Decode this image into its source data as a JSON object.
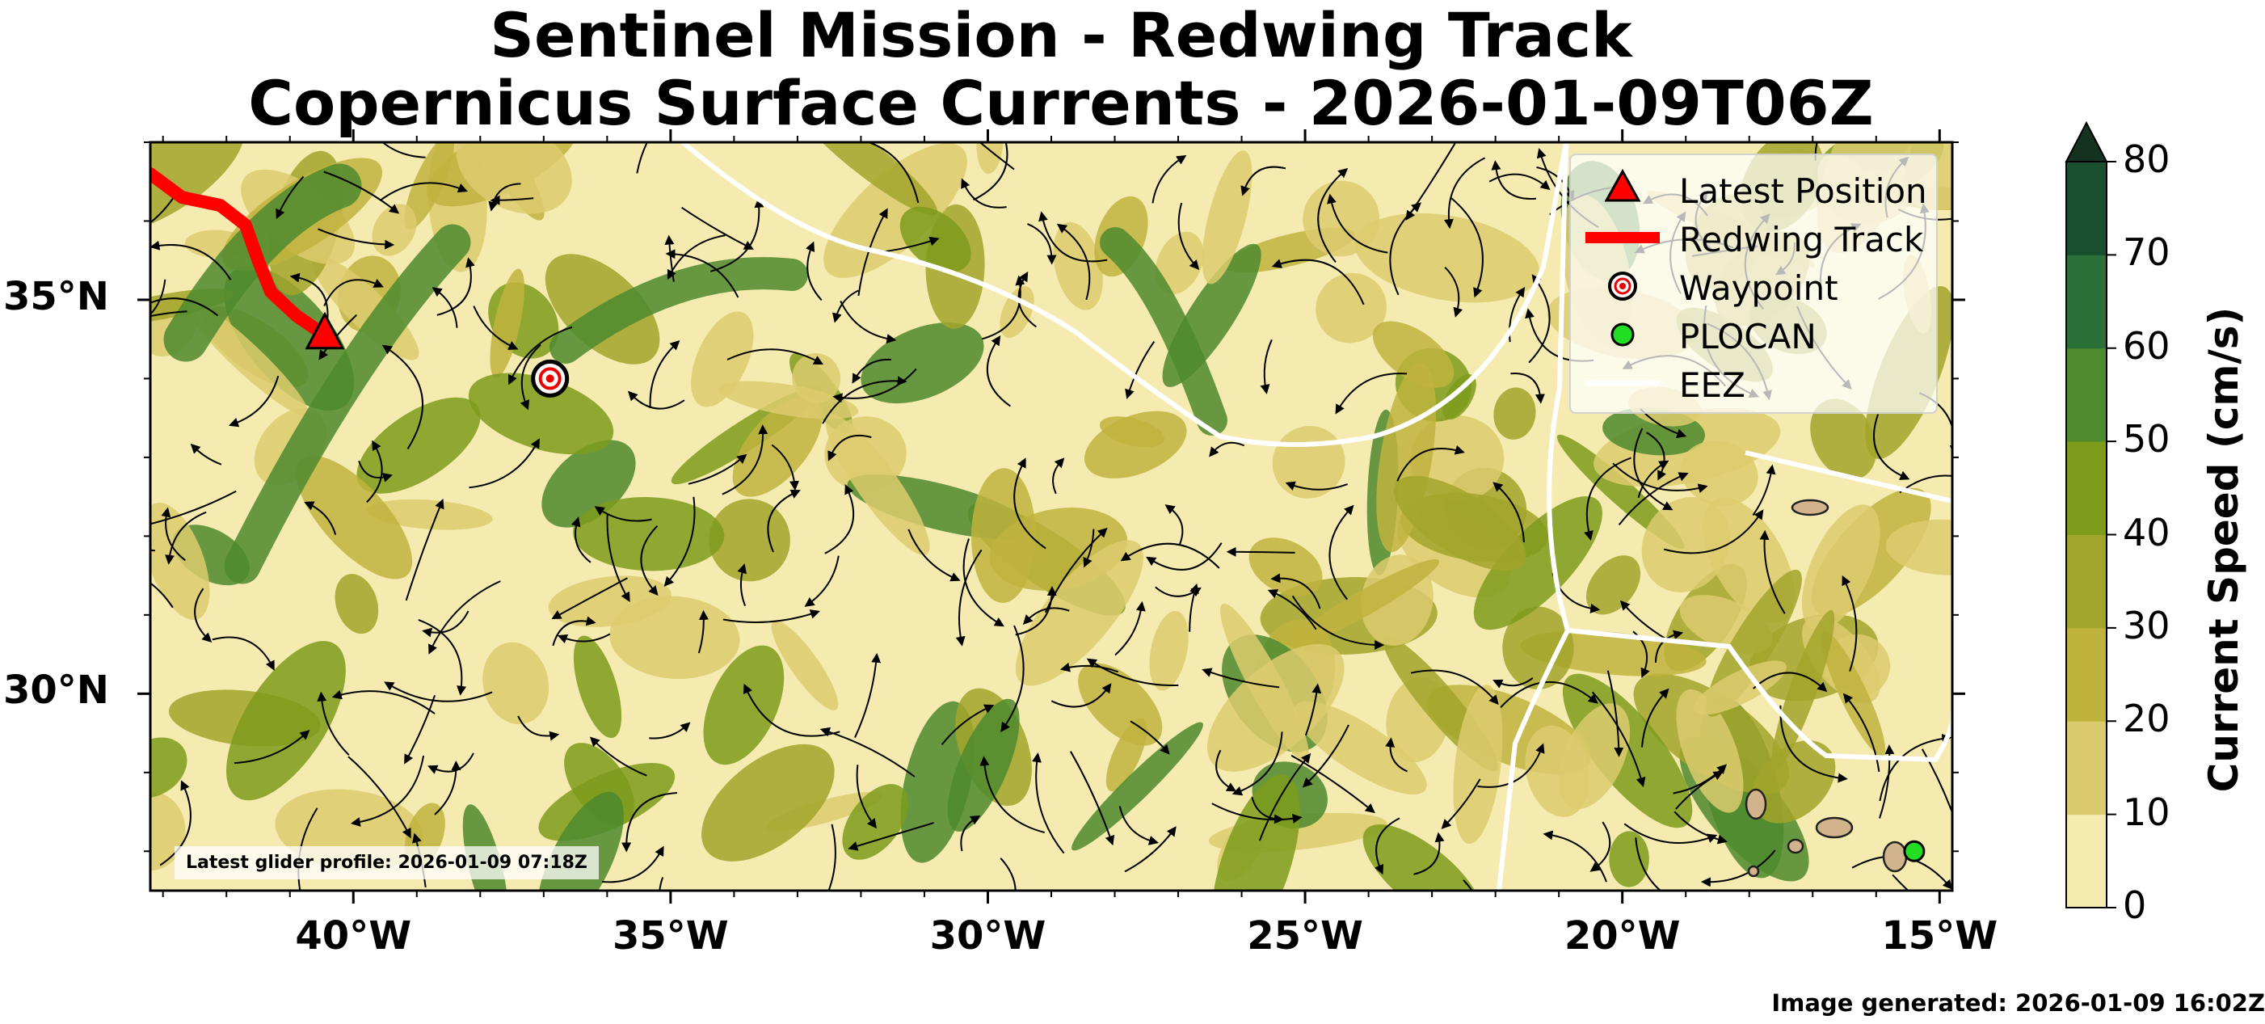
{
  "title": {
    "line1": "Sentinel Mission - Redwing Track",
    "line2": "Copernicus Surface Currents - 2026-01-09T06Z"
  },
  "axes": {
    "x_ticks": [
      "40°W",
      "35°W",
      "30°W",
      "25°W",
      "20°W",
      "15°W"
    ],
    "x_values": [
      -40,
      -35,
      -30,
      -25,
      -20,
      -15
    ],
    "y_ticks": [
      "35°N",
      "30°N"
    ],
    "y_values": [
      35,
      30
    ],
    "lon_range": [
      -43.2,
      -14.8
    ],
    "lat_range": [
      27.5,
      37.0
    ]
  },
  "colorbar": {
    "title": "Current Speed (cm/s)",
    "ticks": [
      "0",
      "10",
      "20",
      "30",
      "40",
      "50",
      "60",
      "70",
      "80"
    ],
    "colors": [
      "#f5ebb0",
      "#dccb6e",
      "#bfb33e",
      "#a2a52c",
      "#7e9b1c",
      "#4e8a2e",
      "#2a7038",
      "#18502e",
      "#14321f"
    ],
    "extend": "max"
  },
  "legend": {
    "items": [
      {
        "label": "Latest Position",
        "symbol": "red-triangle"
      },
      {
        "label": "Redwing Track",
        "symbol": "red-line"
      },
      {
        "label": "Waypoint",
        "symbol": "target"
      },
      {
        "label": "PLOCAN",
        "symbol": "green-dot"
      },
      {
        "label": "EEZ",
        "symbol": "white-line"
      }
    ]
  },
  "markers": {
    "latest_position": {
      "lon": -40.45,
      "lat": 34.55
    },
    "waypoint": {
      "lon": -36.9,
      "lat": 34.0
    },
    "plocan": {
      "lon": -15.4,
      "lat": 28.0
    },
    "track": [
      {
        "lon": -43.2,
        "lat": 36.6
      },
      {
        "lon": -42.7,
        "lat": 36.3
      },
      {
        "lon": -42.1,
        "lat": 36.2
      },
      {
        "lon": -41.7,
        "lat": 35.95
      },
      {
        "lon": -41.5,
        "lat": 35.5
      },
      {
        "lon": -41.3,
        "lat": 35.1
      },
      {
        "lon": -40.9,
        "lat": 34.8
      },
      {
        "lon": -40.45,
        "lat": 34.55
      }
    ]
  },
  "annotations": {
    "latest_profile": "Latest glider profile: 2026-01-09 07:18Z",
    "generated": "Image generated: 2026-01-09 16:02Z"
  },
  "colors": {
    "track": "#ff0000",
    "eez": "#ffffff",
    "plocan": "#22dd22",
    "land": "#d2b48c"
  }
}
